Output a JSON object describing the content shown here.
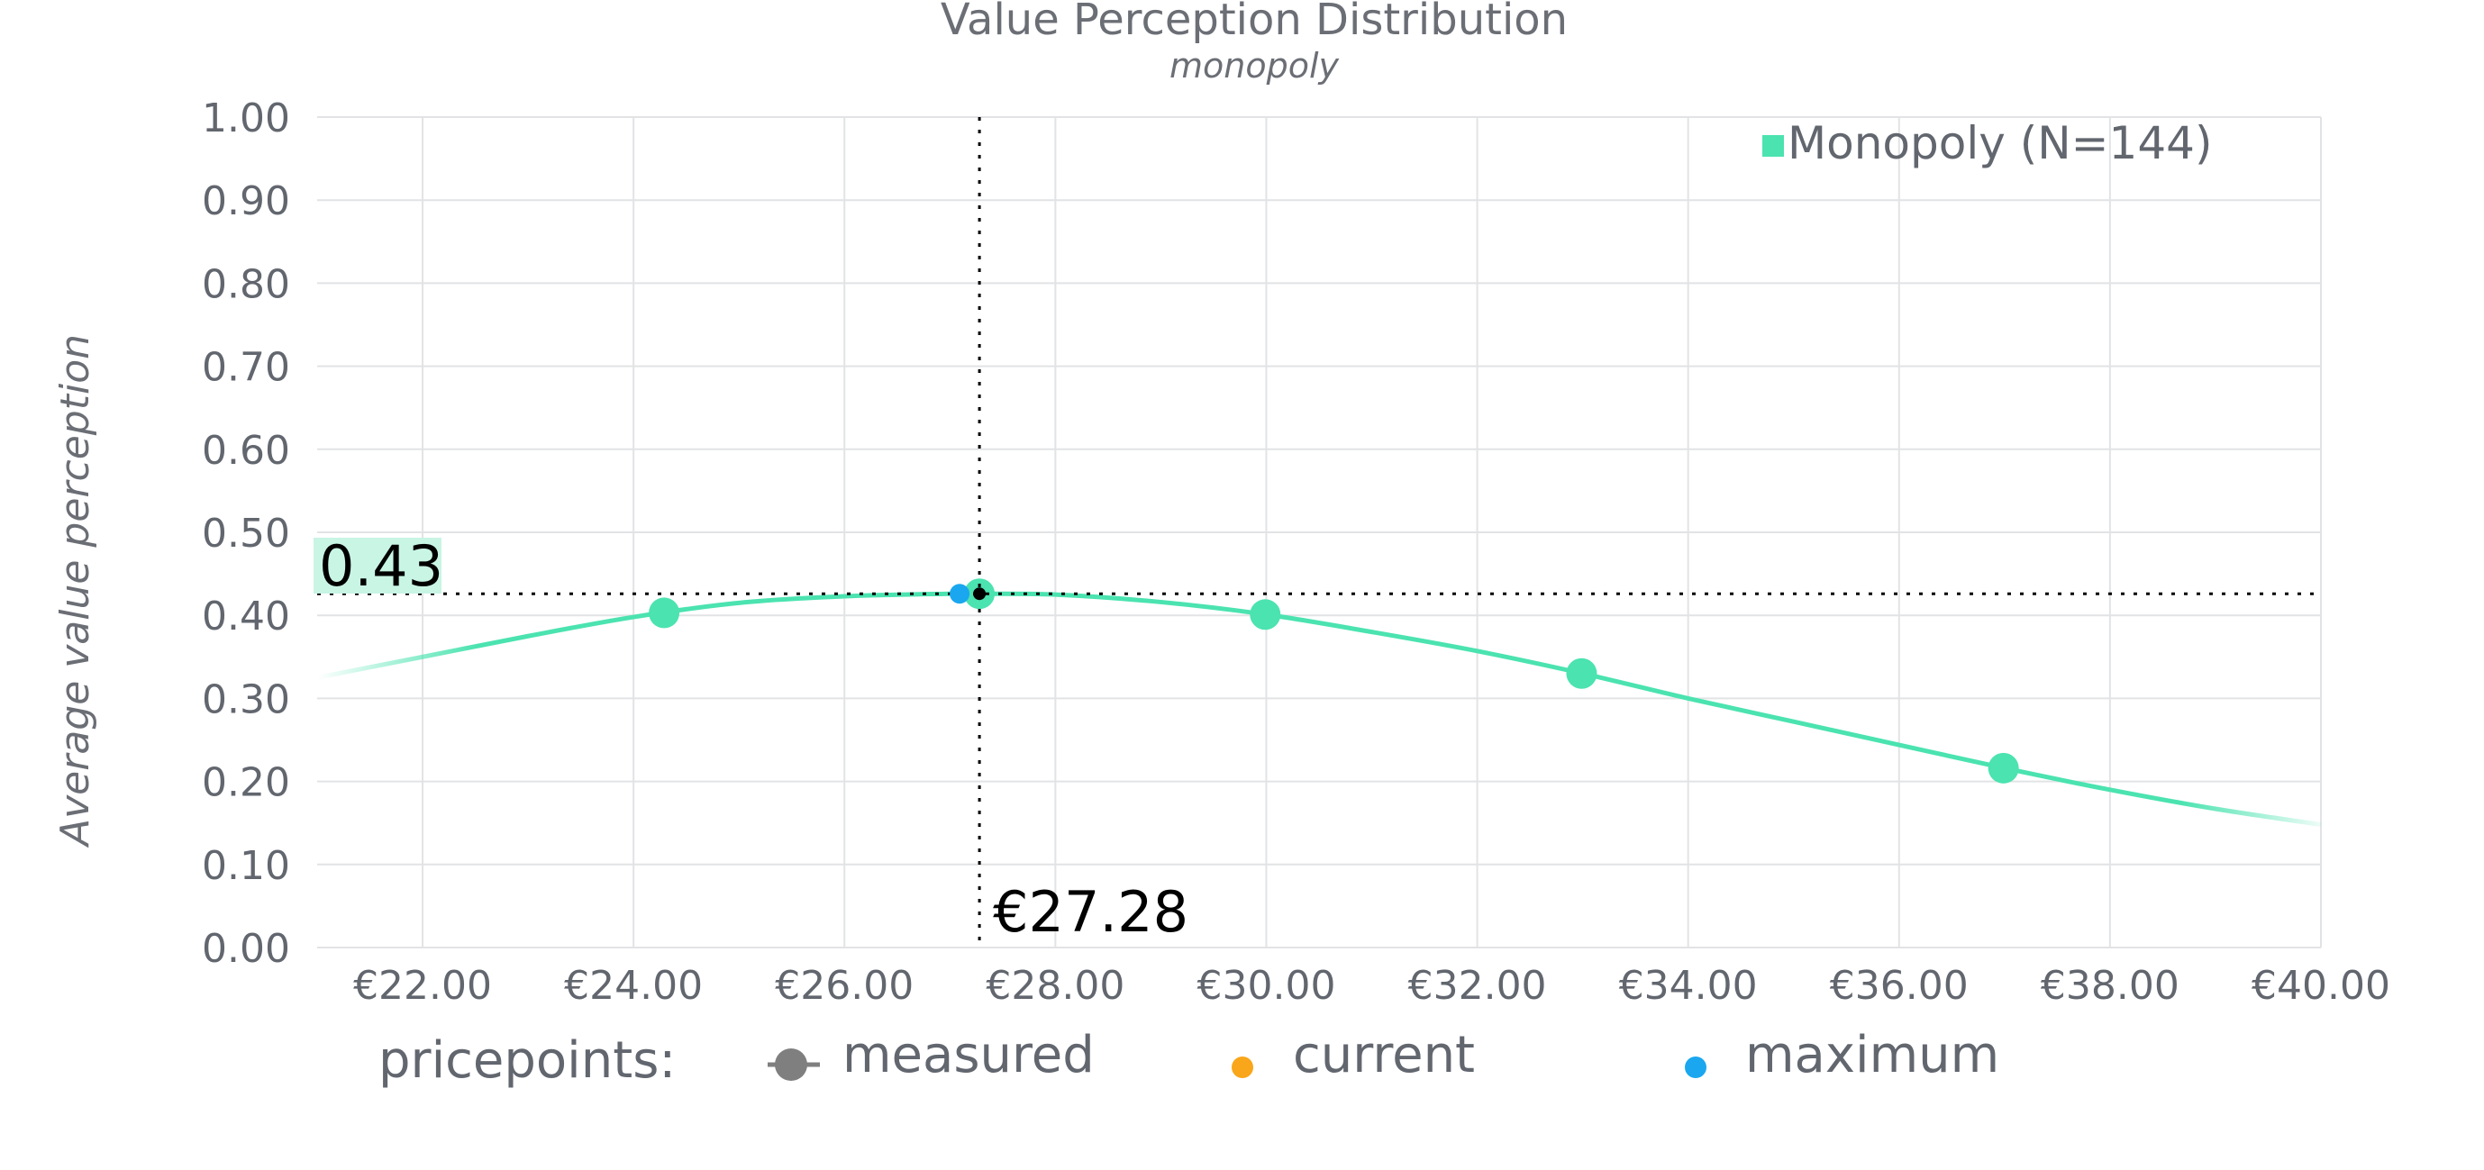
{
  "chart_data": {
    "type": "line",
    "title": "Value Perception Distribution",
    "subtitle": "monopoly",
    "ylabel": "Average value perception",
    "xlabel": "",
    "xlim": [
      21.0,
      40.0
    ],
    "ylim": [
      0.0,
      1.0
    ],
    "x_ticks": [
      22,
      24,
      26,
      28,
      30,
      32,
      34,
      36,
      38,
      40
    ],
    "x_tick_labels": [
      "€22.00",
      "€24.00",
      "€26.00",
      "€28.00",
      "€30.00",
      "€32.00",
      "€34.00",
      "€36.00",
      "€38.00",
      "€40.00"
    ],
    "y_ticks": [
      0,
      0.1,
      0.2,
      0.3,
      0.4,
      0.5,
      0.6,
      0.7,
      0.8,
      0.9,
      1.0
    ],
    "y_tick_labels": [
      "0.00",
      "0.10",
      "0.20",
      "0.30",
      "0.40",
      "0.50",
      "0.60",
      "0.70",
      "0.80",
      "0.90",
      "1.00"
    ],
    "grid": true,
    "legend_position": "top-right",
    "series": [
      {
        "name": "Monopoly (N=144)",
        "color": "#4be3b0",
        "curve_x": [
          21.0,
          22.0,
          23.0,
          24.0,
          25.0,
          26.0,
          27.0,
          27.28,
          28.0,
          29.0,
          30.0,
          31.0,
          32.0,
          33.0,
          34.0,
          35.0,
          36.0,
          37.0,
          38.0,
          39.0,
          40.0
        ],
        "curve_y": [
          0.325,
          0.35,
          0.375,
          0.398,
          0.415,
          0.423,
          0.426,
          0.426,
          0.425,
          0.416,
          0.401,
          0.38,
          0.357,
          0.33,
          0.3,
          0.272,
          0.244,
          0.216,
          0.19,
          0.167,
          0.148
        ],
        "measured_x": [
          24.29,
          27.28,
          29.99,
          32.99,
          36.99
        ],
        "measured_y": [
          0.403,
          0.426,
          0.401,
          0.33,
          0.216
        ]
      }
    ],
    "maximum": {
      "x": 27.28,
      "y": 0.426,
      "x_label": "€27.28",
      "y_label": "0.43",
      "color": "#1aa7ef"
    },
    "current": {
      "color": "#f9a61a"
    },
    "pricepoints_legend": {
      "label": "pricepoints:",
      "items": [
        {
          "label": "measured",
          "color": "#7f7f7f",
          "icon": "circle-line-icon"
        },
        {
          "label": "current",
          "color": "#f9a61a",
          "icon": "dot-icon"
        },
        {
          "label": "maximum",
          "color": "#1aa7ef",
          "icon": "dot-icon"
        }
      ]
    }
  }
}
